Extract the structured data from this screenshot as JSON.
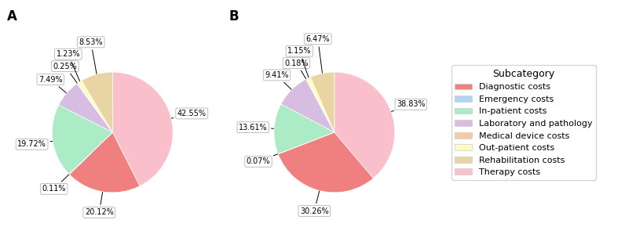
{
  "chart_data": [
    {
      "type": "pie",
      "title": "A",
      "categories": [
        "Therapy costs",
        "Diagnostic costs",
        "Emergency costs",
        "In-patient costs",
        "Laboratory and pathology",
        "Medical device costs",
        "Out-patient costs",
        "Rehabilitation costs"
      ],
      "values": [
        42.55,
        20.12,
        0.11,
        19.72,
        7.49,
        0.25,
        1.23,
        8.53
      ],
      "value_labels": [
        "42.55%",
        "20.12%",
        "0.11%",
        "19.72%",
        "7.49%",
        "0.25%",
        "1.23%",
        "8.53%"
      ],
      "colors": [
        "#f9c0cb",
        "#f08080",
        "#aed6f1",
        "#abebc6",
        "#d7bde2",
        "#f5cba7",
        "#fdfdc0",
        "#e8d5a3"
      ],
      "data_labels": true
    },
    {
      "type": "pie",
      "title": "B",
      "categories": [
        "Therapy costs",
        "Diagnostic costs",
        "Emergency costs",
        "In-patient costs",
        "Laboratory and pathology",
        "Medical device costs",
        "Out-patient costs",
        "Rehabilitation costs"
      ],
      "values": [
        38.83,
        30.26,
        0.07,
        13.61,
        9.41,
        0.18,
        1.15,
        6.47
      ],
      "value_labels": [
        "38.83%",
        "30.26%",
        "0.07%",
        "13.61%",
        "9.41%",
        "0.18%",
        "1.15%",
        "6.47%"
      ],
      "colors": [
        "#f9c0cb",
        "#f08080",
        "#aed6f1",
        "#abebc6",
        "#d7bde2",
        "#f5cba7",
        "#fdfdc0",
        "#e8d5a3"
      ],
      "data_labels": true
    }
  ],
  "legend_title": "Subcategory",
  "legend_entries": [
    {
      "name": "Diagnostic costs",
      "color": "#f08080"
    },
    {
      "name": "Emergency costs",
      "color": "#aed6f1"
    },
    {
      "name": "In-patient costs",
      "color": "#abebc6"
    },
    {
      "name": "Laboratory and pathology",
      "color": "#d7bde2"
    },
    {
      "name": "Medical device costs",
      "color": "#f5cba7"
    },
    {
      "name": "Out-patient costs",
      "color": "#fdfdc0"
    },
    {
      "name": "Rehabilitation costs",
      "color": "#e8d5a3"
    },
    {
      "name": "Therapy costs",
      "color": "#f9c0cb"
    }
  ]
}
